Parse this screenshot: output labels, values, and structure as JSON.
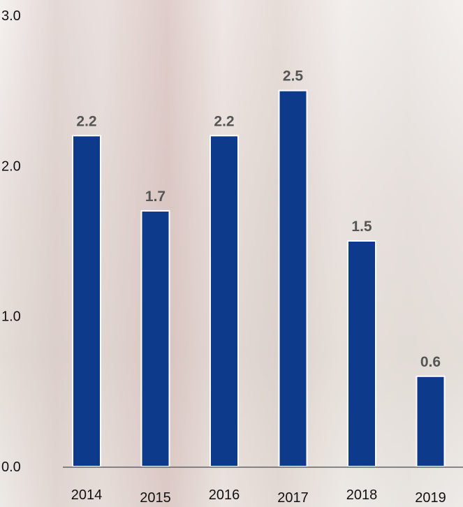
{
  "chart_data": {
    "type": "bar",
    "categories": [
      "2014",
      "2015",
      "2016",
      "2017",
      "2018",
      "2019"
    ],
    "values": [
      2.2,
      1.7,
      2.2,
      2.5,
      1.5,
      0.6
    ],
    "data_labels": [
      "2.2",
      "1.7",
      "2.2",
      "2.5",
      "1.5",
      "0.6"
    ],
    "yticks": [
      "0.0",
      "1.0",
      "2.0",
      "3.0"
    ],
    "ylim": [
      0,
      3.0
    ],
    "grid": false,
    "title": "",
    "xlabel": "",
    "ylabel": "",
    "colors": {
      "bar": "#0e3a8c",
      "bar_stroke": "#ffffff",
      "label": "#555555",
      "tick": "#111111",
      "axis": "#666666"
    }
  }
}
